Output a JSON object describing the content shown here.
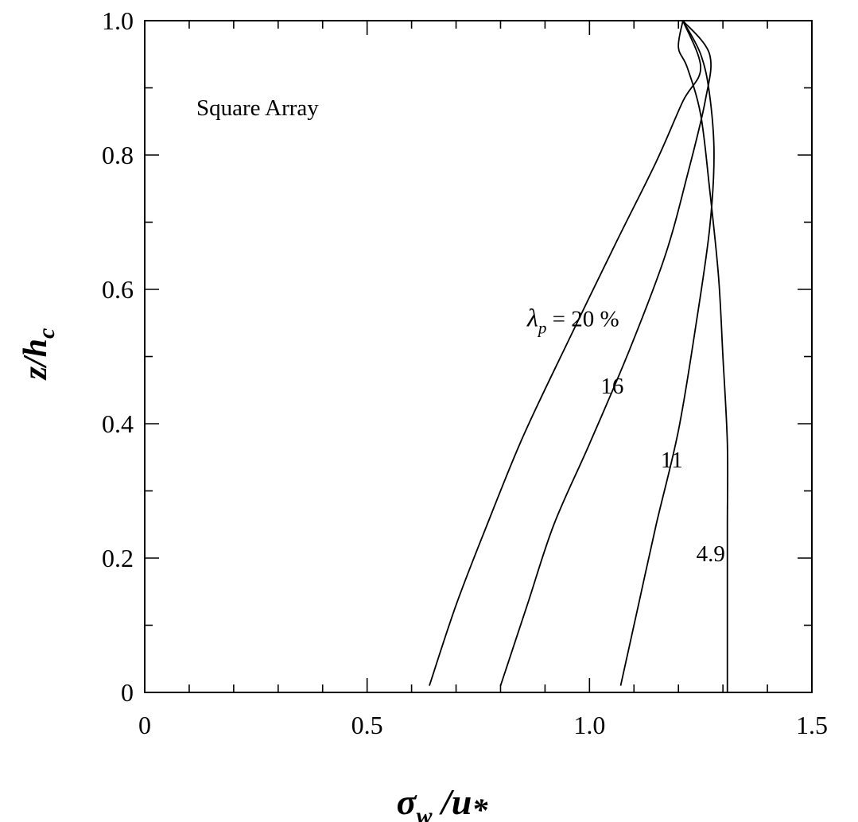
{
  "chart_data": {
    "type": "line",
    "title": "",
    "annotation": "Square Array",
    "xlabel": "σw/u*",
    "ylabel": "z/hc",
    "xlim": [
      0,
      1.5
    ],
    "ylim": [
      0,
      1.0
    ],
    "x_ticks": [
      "0",
      "0.5",
      "1.0",
      "1.5"
    ],
    "y_ticks": [
      "0",
      "0.2",
      "0.4",
      "0.6",
      "0.8",
      "1.0"
    ],
    "grid": false,
    "legend": "none",
    "series": [
      {
        "name": "λp = 20 %",
        "points": [
          [
            0.64,
            0.01
          ],
          [
            0.7,
            0.13
          ],
          [
            0.77,
            0.25
          ],
          [
            0.85,
            0.38
          ],
          [
            0.95,
            0.52
          ],
          [
            1.06,
            0.67
          ],
          [
            1.15,
            0.79
          ],
          [
            1.21,
            0.88
          ],
          [
            1.25,
            0.93
          ],
          [
            1.21,
            1.0
          ]
        ]
      },
      {
        "name": "16",
        "points": [
          [
            0.8,
            0.01
          ],
          [
            0.86,
            0.13
          ],
          [
            0.92,
            0.25
          ],
          [
            1.0,
            0.37
          ],
          [
            1.09,
            0.51
          ],
          [
            1.17,
            0.65
          ],
          [
            1.22,
            0.77
          ],
          [
            1.26,
            0.88
          ],
          [
            1.27,
            0.95
          ],
          [
            1.21,
            1.0
          ]
        ]
      },
      {
        "name": "11",
        "points": [
          [
            1.07,
            0.01
          ],
          [
            1.11,
            0.13
          ],
          [
            1.15,
            0.25
          ],
          [
            1.2,
            0.39
          ],
          [
            1.24,
            0.55
          ],
          [
            1.27,
            0.69
          ],
          [
            1.28,
            0.8
          ],
          [
            1.27,
            0.89
          ],
          [
            1.25,
            0.95
          ],
          [
            1.21,
            1.0
          ]
        ]
      },
      {
        "name": "4.9",
        "points": [
          [
            1.31,
            0.0
          ],
          [
            1.31,
            0.12
          ],
          [
            1.31,
            0.25
          ],
          [
            1.31,
            0.37
          ],
          [
            1.3,
            0.5
          ],
          [
            1.29,
            0.62
          ],
          [
            1.27,
            0.75
          ],
          [
            1.25,
            0.86
          ],
          [
            1.22,
            0.93
          ],
          [
            1.2,
            0.96
          ],
          [
            1.21,
            1.0
          ]
        ]
      }
    ],
    "curve_labels": [
      {
        "series": "λp = 20 %",
        "text_main": "λ",
        "text_sub": "p",
        "text_rest": " = 20 %",
        "x": 0.86,
        "y": 0.545
      },
      {
        "series": "16",
        "text": "16",
        "x": 1.025,
        "y": 0.445
      },
      {
        "series": "11",
        "text": "11",
        "x": 1.16,
        "y": 0.335
      },
      {
        "series": "4.9",
        "text": "4.9",
        "x": 1.24,
        "y": 0.195
      }
    ]
  }
}
